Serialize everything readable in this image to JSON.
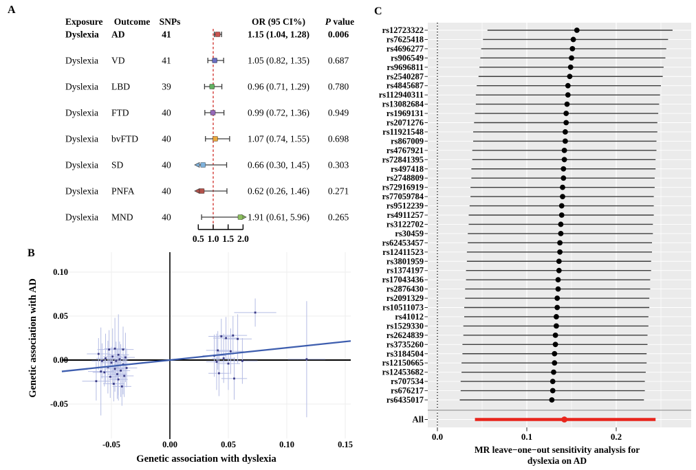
{
  "figure": {
    "background": "#ffffff"
  },
  "chart_data": [
    {
      "id": "panel_a",
      "type": "table",
      "panel_label": "A",
      "description": "Forest plot: MR estimates of dyslexia on neurodegenerative disease outcomes",
      "columns": [
        "Exposure",
        "Outcome",
        "SNPs",
        "OR (95 CI%)",
        "P value"
      ],
      "or_axis": {
        "tick_labels": [
          "0.5",
          "1.0",
          "1.5",
          "2.0"
        ],
        "ticks": [
          0.5,
          1.0,
          1.5,
          2.0
        ],
        "min": 0.5,
        "max": 2.0,
        "ref_line": 1.0,
        "ref_color": "#d9534f"
      },
      "highlight_color": "#9e2b28",
      "whisker_color": "#3c3c3c",
      "rows": [
        {
          "exposure": "Dyslexia",
          "outcome": "AD",
          "snps": "41",
          "or_ci": "1.15 (1.04, 1.28)",
          "p": "0.006",
          "est": 1.15,
          "lo": 1.04,
          "hi": 1.28,
          "color": "#c9534f",
          "highlight": true
        },
        {
          "exposure": "Dyslexia",
          "outcome": "VD",
          "snps": "41",
          "or_ci": "1.05 (0.82, 1.35)",
          "p": "0.687",
          "est": 1.05,
          "lo": 0.82,
          "hi": 1.35,
          "color": "#6a6ec1",
          "highlight": false
        },
        {
          "exposure": "Dyslexia",
          "outcome": "LBD",
          "snps": "39",
          "or_ci": "0.96 (0.71, 1.29)",
          "p": "0.780",
          "est": 0.96,
          "lo": 0.71,
          "hi": 1.29,
          "color": "#63b162",
          "highlight": false
        },
        {
          "exposure": "Dyslexia",
          "outcome": "FTD",
          "snps": "40",
          "or_ci": "0.99 (0.72, 1.36)",
          "p": "0.949",
          "est": 0.99,
          "lo": 0.72,
          "hi": 1.36,
          "color": "#9569b8",
          "highlight": false
        },
        {
          "exposure": "Dyslexia",
          "outcome": "bvFTD",
          "snps": "40",
          "or_ci": "1.07 (0.74, 1.55)",
          "p": "0.698",
          "est": 1.07,
          "lo": 0.74,
          "hi": 1.55,
          "color": "#e9a83f",
          "highlight": false
        },
        {
          "exposure": "Dyslexia",
          "outcome": "SD",
          "snps": "40",
          "or_ci": "0.66 (0.30, 1.45)",
          "p": "0.303",
          "est": 0.66,
          "lo": 0.3,
          "hi": 1.45,
          "color": "#7fb2dc",
          "highlight": false
        },
        {
          "exposure": "Dyslexia",
          "outcome": "PNFA",
          "snps": "40",
          "or_ci": "0.62 (0.26, 1.46)",
          "p": "0.271",
          "est": 0.62,
          "lo": 0.26,
          "hi": 1.46,
          "color": "#b2524b",
          "highlight": false
        },
        {
          "exposure": "Dyslexia",
          "outcome": "MND",
          "snps": "40",
          "or_ci": "1.91 (0.61, 5.96)",
          "p": "0.265",
          "est": 1.91,
          "lo": 0.61,
          "hi": 5.96,
          "color": "#8cbf5f",
          "highlight": false
        }
      ]
    },
    {
      "id": "panel_b",
      "type": "scatter",
      "panel_label": "B",
      "xlabel": "Genetic association with dyslexia",
      "ylabel": "Genetic association with AD",
      "x_tick_labels": [
        "-0.05",
        "0.00",
        "0.05",
        "0.10",
        "0.15"
      ],
      "x_ticks": [
        -0.05,
        0.0,
        0.05,
        0.1,
        0.15
      ],
      "y_tick_labels": [
        "0.10",
        "0.05",
        "0.00",
        "-0.05"
      ],
      "y_ticks": [
        0.1,
        0.05,
        0.0,
        -0.05
      ],
      "regression": {
        "slope": 0.14,
        "intercept": 0.0,
        "color": "#3d5dae"
      },
      "colors": {
        "point": "#3b3b85",
        "error_bar": "#b4bce4",
        "axis": "#000000",
        "grid": "#ededed"
      },
      "point_format": [
        "x",
        "y",
        "xerr",
        "yerr"
      ],
      "points": [
        [
          -0.063,
          -0.024,
          0.012,
          0.022
        ],
        [
          -0.061,
          0.007,
          0.01,
          0.018
        ],
        [
          -0.059,
          -0.013,
          0.011,
          0.05
        ],
        [
          -0.058,
          -0.001,
          0.009,
          0.02
        ],
        [
          -0.056,
          -0.014,
          0.01,
          0.016
        ],
        [
          -0.055,
          0.002,
          0.008,
          0.028
        ],
        [
          -0.053,
          -0.008,
          0.009,
          0.03
        ],
        [
          -0.052,
          0.012,
          0.01,
          0.022
        ],
        [
          -0.051,
          -0.019,
          0.008,
          0.024
        ],
        [
          -0.05,
          -0.003,
          0.009,
          0.018
        ],
        [
          -0.049,
          0.004,
          0.008,
          0.032
        ],
        [
          -0.048,
          -0.027,
          0.009,
          0.02
        ],
        [
          -0.047,
          -0.01,
          0.008,
          0.026
        ],
        [
          -0.047,
          0.013,
          0.009,
          0.035
        ],
        [
          -0.046,
          -0.001,
          0.008,
          0.022
        ],
        [
          -0.045,
          -0.016,
          0.008,
          0.028
        ],
        [
          -0.044,
          0.006,
          0.009,
          0.046
        ],
        [
          -0.044,
          -0.022,
          0.008,
          0.024
        ],
        [
          -0.043,
          0.001,
          0.008,
          0.02
        ],
        [
          -0.042,
          -0.012,
          0.008,
          0.03
        ],
        [
          -0.041,
          -0.03,
          0.008,
          0.022
        ],
        [
          -0.04,
          0.012,
          0.009,
          0.026
        ],
        [
          -0.04,
          -0.005,
          0.008,
          0.034
        ],
        [
          -0.039,
          -0.018,
          0.008,
          0.024
        ],
        [
          -0.038,
          0.003,
          0.008,
          0.028
        ],
        [
          -0.037,
          -0.009,
          0.009,
          0.022
        ],
        [
          0.038,
          0.005,
          0.01,
          0.024
        ],
        [
          0.04,
          -0.002,
          0.009,
          0.032
        ],
        [
          0.041,
          0.011,
          0.01,
          0.022
        ],
        [
          0.042,
          -0.015,
          0.009,
          0.026
        ],
        [
          0.044,
          0.027,
          0.011,
          0.02
        ],
        [
          0.046,
          0.002,
          0.01,
          0.028
        ],
        [
          0.048,
          0.025,
          0.011,
          0.024
        ],
        [
          0.05,
          -0.004,
          0.01,
          0.03
        ],
        [
          0.052,
          0.01,
          0.011,
          0.026
        ],
        [
          0.054,
          0.028,
          0.012,
          0.022
        ],
        [
          0.055,
          -0.021,
          0.011,
          0.024
        ],
        [
          0.058,
          0.024,
          0.012,
          0.028
        ],
        [
          0.062,
          -0.001,
          0.013,
          0.026
        ],
        [
          0.073,
          0.054,
          0.018,
          0.016
        ],
        [
          0.117,
          0.001,
          0.016,
          0.066
        ]
      ]
    },
    {
      "id": "panel_c",
      "type": "forest",
      "panel_label": "C",
      "title_lines": [
        "MR leave−one−out sensitivity analysis for",
        "dyslexia on AD"
      ],
      "x_tick_labels": [
        "0.0",
        "0.1",
        "0.2"
      ],
      "x_ticks": [
        0.0,
        0.1,
        0.2
      ],
      "colors": {
        "panel_bg": "#ebebeb",
        "grid": "#ffffff",
        "ci": "#3d3d3d",
        "dot": "#000000",
        "all": "#e8251c",
        "separator": "#9a9a9a"
      },
      "row_format": [
        "snp",
        "estimate",
        "ci_low",
        "ci_high"
      ],
      "rows": [
        [
          "rs12723322",
          0.156,
          0.056,
          0.263
        ],
        [
          "rs7625418",
          0.152,
          0.051,
          0.258
        ],
        [
          "rs4696277",
          0.151,
          0.049,
          0.256
        ],
        [
          "rs906549",
          0.15,
          0.048,
          0.255
        ],
        [
          "rs9696811",
          0.149,
          0.047,
          0.253
        ],
        [
          "rs2540287",
          0.148,
          0.046,
          0.252
        ],
        [
          "rs4845687",
          0.146,
          0.044,
          0.25
        ],
        [
          "rs112940311",
          0.146,
          0.043,
          0.249
        ],
        [
          "rs13082684",
          0.145,
          0.043,
          0.248
        ],
        [
          "rs1969131",
          0.144,
          0.042,
          0.247
        ],
        [
          "rs2071276",
          0.144,
          0.041,
          0.246
        ],
        [
          "rs11921548",
          0.143,
          0.04,
          0.246
        ],
        [
          "rs867009",
          0.143,
          0.04,
          0.245
        ],
        [
          "rs4767921",
          0.142,
          0.039,
          0.245
        ],
        [
          "rs72841395",
          0.142,
          0.039,
          0.244
        ],
        [
          "rs497418",
          0.141,
          0.038,
          0.244
        ],
        [
          "rs2748809",
          0.141,
          0.038,
          0.243
        ],
        [
          "rs72916919",
          0.14,
          0.037,
          0.243
        ],
        [
          "rs77059784",
          0.14,
          0.037,
          0.242
        ],
        [
          "rs9512239",
          0.139,
          0.036,
          0.242
        ],
        [
          "rs4911257",
          0.139,
          0.035,
          0.242
        ],
        [
          "rs3122702",
          0.138,
          0.035,
          0.241
        ],
        [
          "rs30459",
          0.138,
          0.034,
          0.241
        ],
        [
          "rs62453457",
          0.137,
          0.034,
          0.24
        ],
        [
          "rs12411523",
          0.137,
          0.033,
          0.24
        ],
        [
          "rs3801959",
          0.136,
          0.033,
          0.239
        ],
        [
          "rs1374197",
          0.136,
          0.032,
          0.239
        ],
        [
          "rs17043436",
          0.135,
          0.032,
          0.238
        ],
        [
          "rs2876430",
          0.135,
          0.031,
          0.238
        ],
        [
          "rs2091329",
          0.134,
          0.031,
          0.237
        ],
        [
          "rs10511073",
          0.134,
          0.03,
          0.237
        ],
        [
          "rs41012",
          0.133,
          0.03,
          0.236
        ],
        [
          "rs1529330",
          0.133,
          0.029,
          0.236
        ],
        [
          "rs2624839",
          0.132,
          0.029,
          0.235
        ],
        [
          "rs3735260",
          0.132,
          0.028,
          0.235
        ],
        [
          "rs3184504",
          0.131,
          0.028,
          0.234
        ],
        [
          "rs12150665",
          0.131,
          0.027,
          0.234
        ],
        [
          "rs12453682",
          0.13,
          0.027,
          0.233
        ],
        [
          "rs707534",
          0.129,
          0.026,
          0.232
        ],
        [
          "rs676217",
          0.129,
          0.026,
          0.232
        ],
        [
          "rs6435017",
          0.128,
          0.025,
          0.231
        ]
      ],
      "all_row": {
        "label": "All",
        "estimate": 0.142,
        "ci_low": 0.042,
        "ci_high": 0.244
      }
    }
  ]
}
